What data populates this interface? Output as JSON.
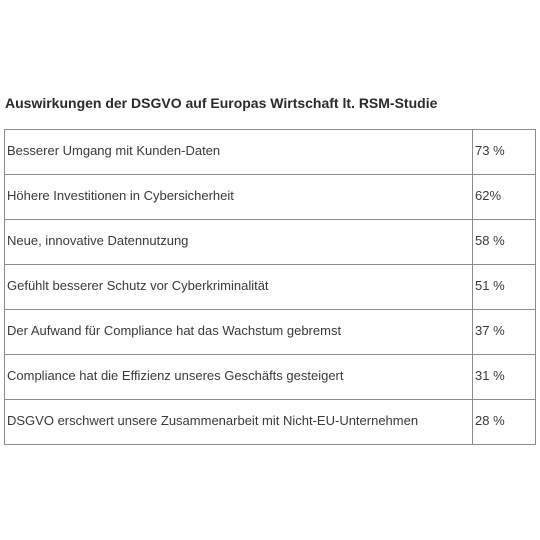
{
  "chart_data": {
    "type": "table",
    "title": "Auswirkungen der DSGVO auf Europas Wirtschaft lt. RSM-Studie",
    "rows": [
      {
        "label": "Besserer Umgang mit Kunden-Daten",
        "value_text": "73 %",
        "value": 73
      },
      {
        "label": "Höhere Investitionen in Cybersicherheit",
        "value_text": "62%",
        "value": 62
      },
      {
        "label": "Neue, innovative Datennutzung",
        "value_text": "58 %",
        "value": 58
      },
      {
        "label": "Gefühlt besserer Schutz vor Cyberkriminalität",
        "value_text": "51 %",
        "value": 51
      },
      {
        "label": "Der Aufwand für Compliance hat das Wachstum gebremst",
        "value_text": "37 %",
        "value": 37
      },
      {
        "label": "Compliance hat die Effizienz unseres Geschäfts gesteigert",
        "value_text": "31 %",
        "value": 31
      },
      {
        "label": "DSGVO erschwert unsere Zusammenarbeit mit Nicht-EU-Unternehmen",
        "value_text": "28 %",
        "value": 28
      }
    ]
  }
}
